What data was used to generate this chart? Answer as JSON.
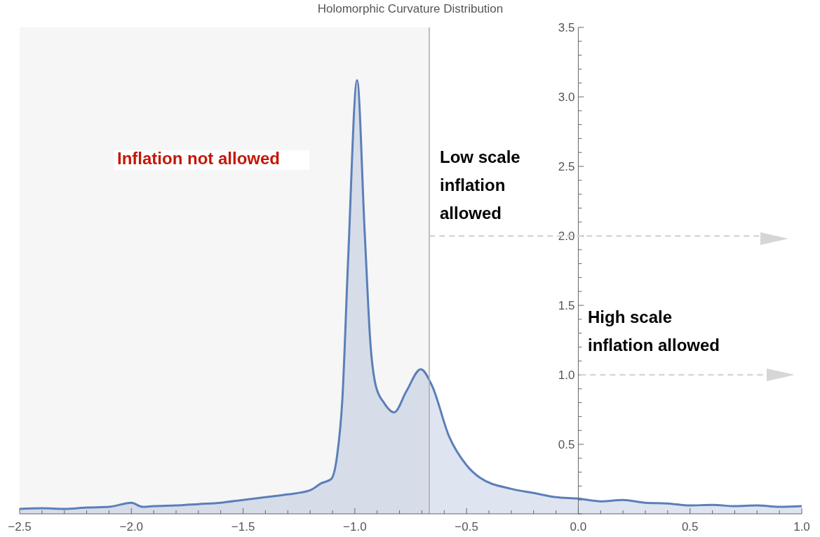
{
  "chart_data": {
    "type": "area",
    "title": "Holomorphic Curvature Distribution",
    "x": [
      -2.5,
      -2.4,
      -2.3,
      -2.2,
      -2.1,
      -2.0,
      -1.95,
      -1.9,
      -1.8,
      -1.7,
      -1.6,
      -1.5,
      -1.4,
      -1.3,
      -1.2,
      -1.15,
      -1.106,
      -1.08,
      -1.056,
      -1.03,
      -0.99,
      -0.956,
      -0.93,
      -0.906,
      -0.87,
      -0.824,
      -0.77,
      -0.705,
      -0.654,
      -0.579,
      -0.5,
      -0.44,
      -0.3,
      -0.2,
      -0.1,
      0.0,
      0.1,
      0.2,
      0.3,
      0.4,
      0.5,
      0.6,
      0.7,
      0.8,
      0.9,
      1.0
    ],
    "series": [
      {
        "color": "#5b7fb8",
        "values": [
          0.035,
          0.04,
          0.035,
          0.045,
          0.05,
          0.08,
          0.05,
          0.055,
          0.06,
          0.07,
          0.08,
          0.1,
          0.12,
          0.14,
          0.17,
          0.22,
          0.25,
          0.41,
          0.82,
          1.83,
          3.12,
          2.03,
          1.22,
          0.92,
          0.8,
          0.73,
          0.88,
          1.04,
          0.92,
          0.56,
          0.35,
          0.26,
          0.18,
          0.15,
          0.12,
          0.11,
          0.09,
          0.1,
          0.08,
          0.075,
          0.06,
          0.065,
          0.055,
          0.06,
          0.05,
          0.055
        ]
      }
    ],
    "xlim": [
      -2.5,
      1.0
    ],
    "xticks": [
      {
        "value": -2.5,
        "label": "−2.5"
      },
      {
        "value": -2.0,
        "label": "−2.0"
      },
      {
        "value": -1.5,
        "label": "−1.5"
      },
      {
        "value": -1.0,
        "label": "−1.0"
      },
      {
        "value": -0.5,
        "label": "−0.5"
      },
      {
        "value": 0,
        "label": "0.0"
      },
      {
        "value": 0.5,
        "label": "0.5"
      },
      {
        "value": 1.0,
        "label": "1.0"
      }
    ],
    "ylim": [
      0,
      3.5
    ],
    "yticks": [
      {
        "value": 0.5,
        "label": "0.5"
      },
      {
        "value": 1.0,
        "label": "1.0"
      },
      {
        "value": 1.5,
        "label": "1.5"
      },
      {
        "value": 2.0,
        "label": "2.0"
      },
      {
        "value": 2.5,
        "label": "2.5"
      },
      {
        "value": 3.0,
        "label": "3.0"
      },
      {
        "value": 3.5,
        "label": "3.5"
      }
    ],
    "bands": [
      {
        "axis": "x",
        "from": -2.5,
        "to": -0.667,
        "label": "Inflation not allowed",
        "color": "#f6f6f6"
      }
    ],
    "ref_lines": [
      {
        "axis": "x",
        "value": -0.667,
        "color": "#aaaaaa"
      }
    ],
    "annotations": [
      "Low scale inflation allowed",
      "High scale inflation allowed"
    ],
    "tick_labels": true
  }
}
